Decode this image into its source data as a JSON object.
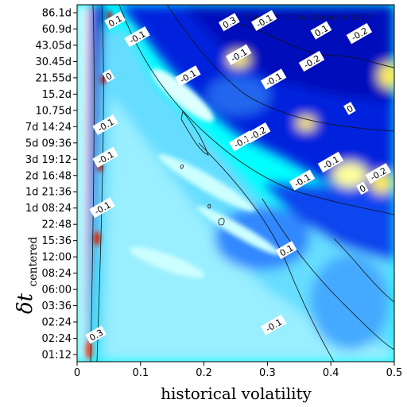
{
  "chart_data": {
    "type": "heatmap",
    "xlabel": "historical volatility",
    "ylabel_main": "δt",
    "ylabel_sub": "centered",
    "xlim": [
      0,
      0.5
    ],
    "x_ticks": [
      0,
      0.1,
      0.2,
      0.3,
      0.4,
      0.5
    ],
    "x_tick_labels": [
      "0",
      "0.1",
      "0.2",
      "0.3",
      "0.4",
      "0.5"
    ],
    "y_tick_labels": [
      "86.1d",
      "60.9d",
      "43.05d",
      "30.45d",
      "21.55d",
      "15.2d",
      "10.75d",
      "7d 14:24",
      "5d 09:36",
      "3d 19:12",
      "2d 16:48",
      "1d 21:36",
      "1d 08:24",
      "22:48",
      "15:36",
      "12:00",
      "08:24",
      "06:00",
      "03:36",
      "02:24",
      "02:24",
      "01:12"
    ],
    "copyright": "Copyright Gilles Zumbach 2012",
    "colors": {
      "background": "#00ffff",
      "low": "#0000cc",
      "mid": "#66ddff",
      "high": "#ffff66",
      "extreme": "#cc0000"
    },
    "contour_labels": [
      {
        "text": "0.1",
        "x": 0.06,
        "y_index": 0.5
      },
      {
        "text": "-0.1",
        "x": 0.095,
        "y_index": 1.5
      },
      {
        "text": "0.3",
        "x": 0.24,
        "y_index": 0.6
      },
      {
        "text": "-0.1",
        "x": 0.295,
        "y_index": 0.5
      },
      {
        "text": "0.1",
        "x": 0.385,
        "y_index": 1.1
      },
      {
        "text": "-0.2",
        "x": 0.445,
        "y_index": 1.3
      },
      {
        "text": "-0.1",
        "x": 0.255,
        "y_index": 2.6
      },
      {
        "text": "-0.2",
        "x": 0.37,
        "y_index": 3.0
      },
      {
        "text": "-0.1",
        "x": 0.175,
        "y_index": 3.9
      },
      {
        "text": "0",
        "x": 0.05,
        "y_index": 3.9
      },
      {
        "text": "-0.1",
        "x": 0.31,
        "y_index": 4.1
      },
      {
        "text": "0",
        "x": 0.43,
        "y_index": 5.9
      },
      {
        "text": "-0.1",
        "x": 0.045,
        "y_index": 6.9
      },
      {
        "text": "-0.1",
        "x": 0.26,
        "y_index": 7.9
      },
      {
        "text": "-0.2",
        "x": 0.285,
        "y_index": 7.4
      },
      {
        "text": "-0.1",
        "x": 0.045,
        "y_index": 8.9
      },
      {
        "text": "-0.1",
        "x": 0.4,
        "y_index": 9.2
      },
      {
        "text": "-0.2",
        "x": 0.475,
        "y_index": 9.9
      },
      {
        "text": "-0.1",
        "x": 0.355,
        "y_index": 10.3
      },
      {
        "text": "0",
        "x": 0.45,
        "y_index": 10.8
      },
      {
        "text": "-0.1",
        "x": 0.04,
        "y_index": 12.0
      },
      {
        "text": "0.1",
        "x": 0.33,
        "y_index": 14.6
      },
      {
        "text": "-0.1",
        "x": 0.31,
        "y_index": 19.2
      },
      {
        "text": "0.3",
        "x": 0.03,
        "y_index": 19.8
      }
    ]
  }
}
